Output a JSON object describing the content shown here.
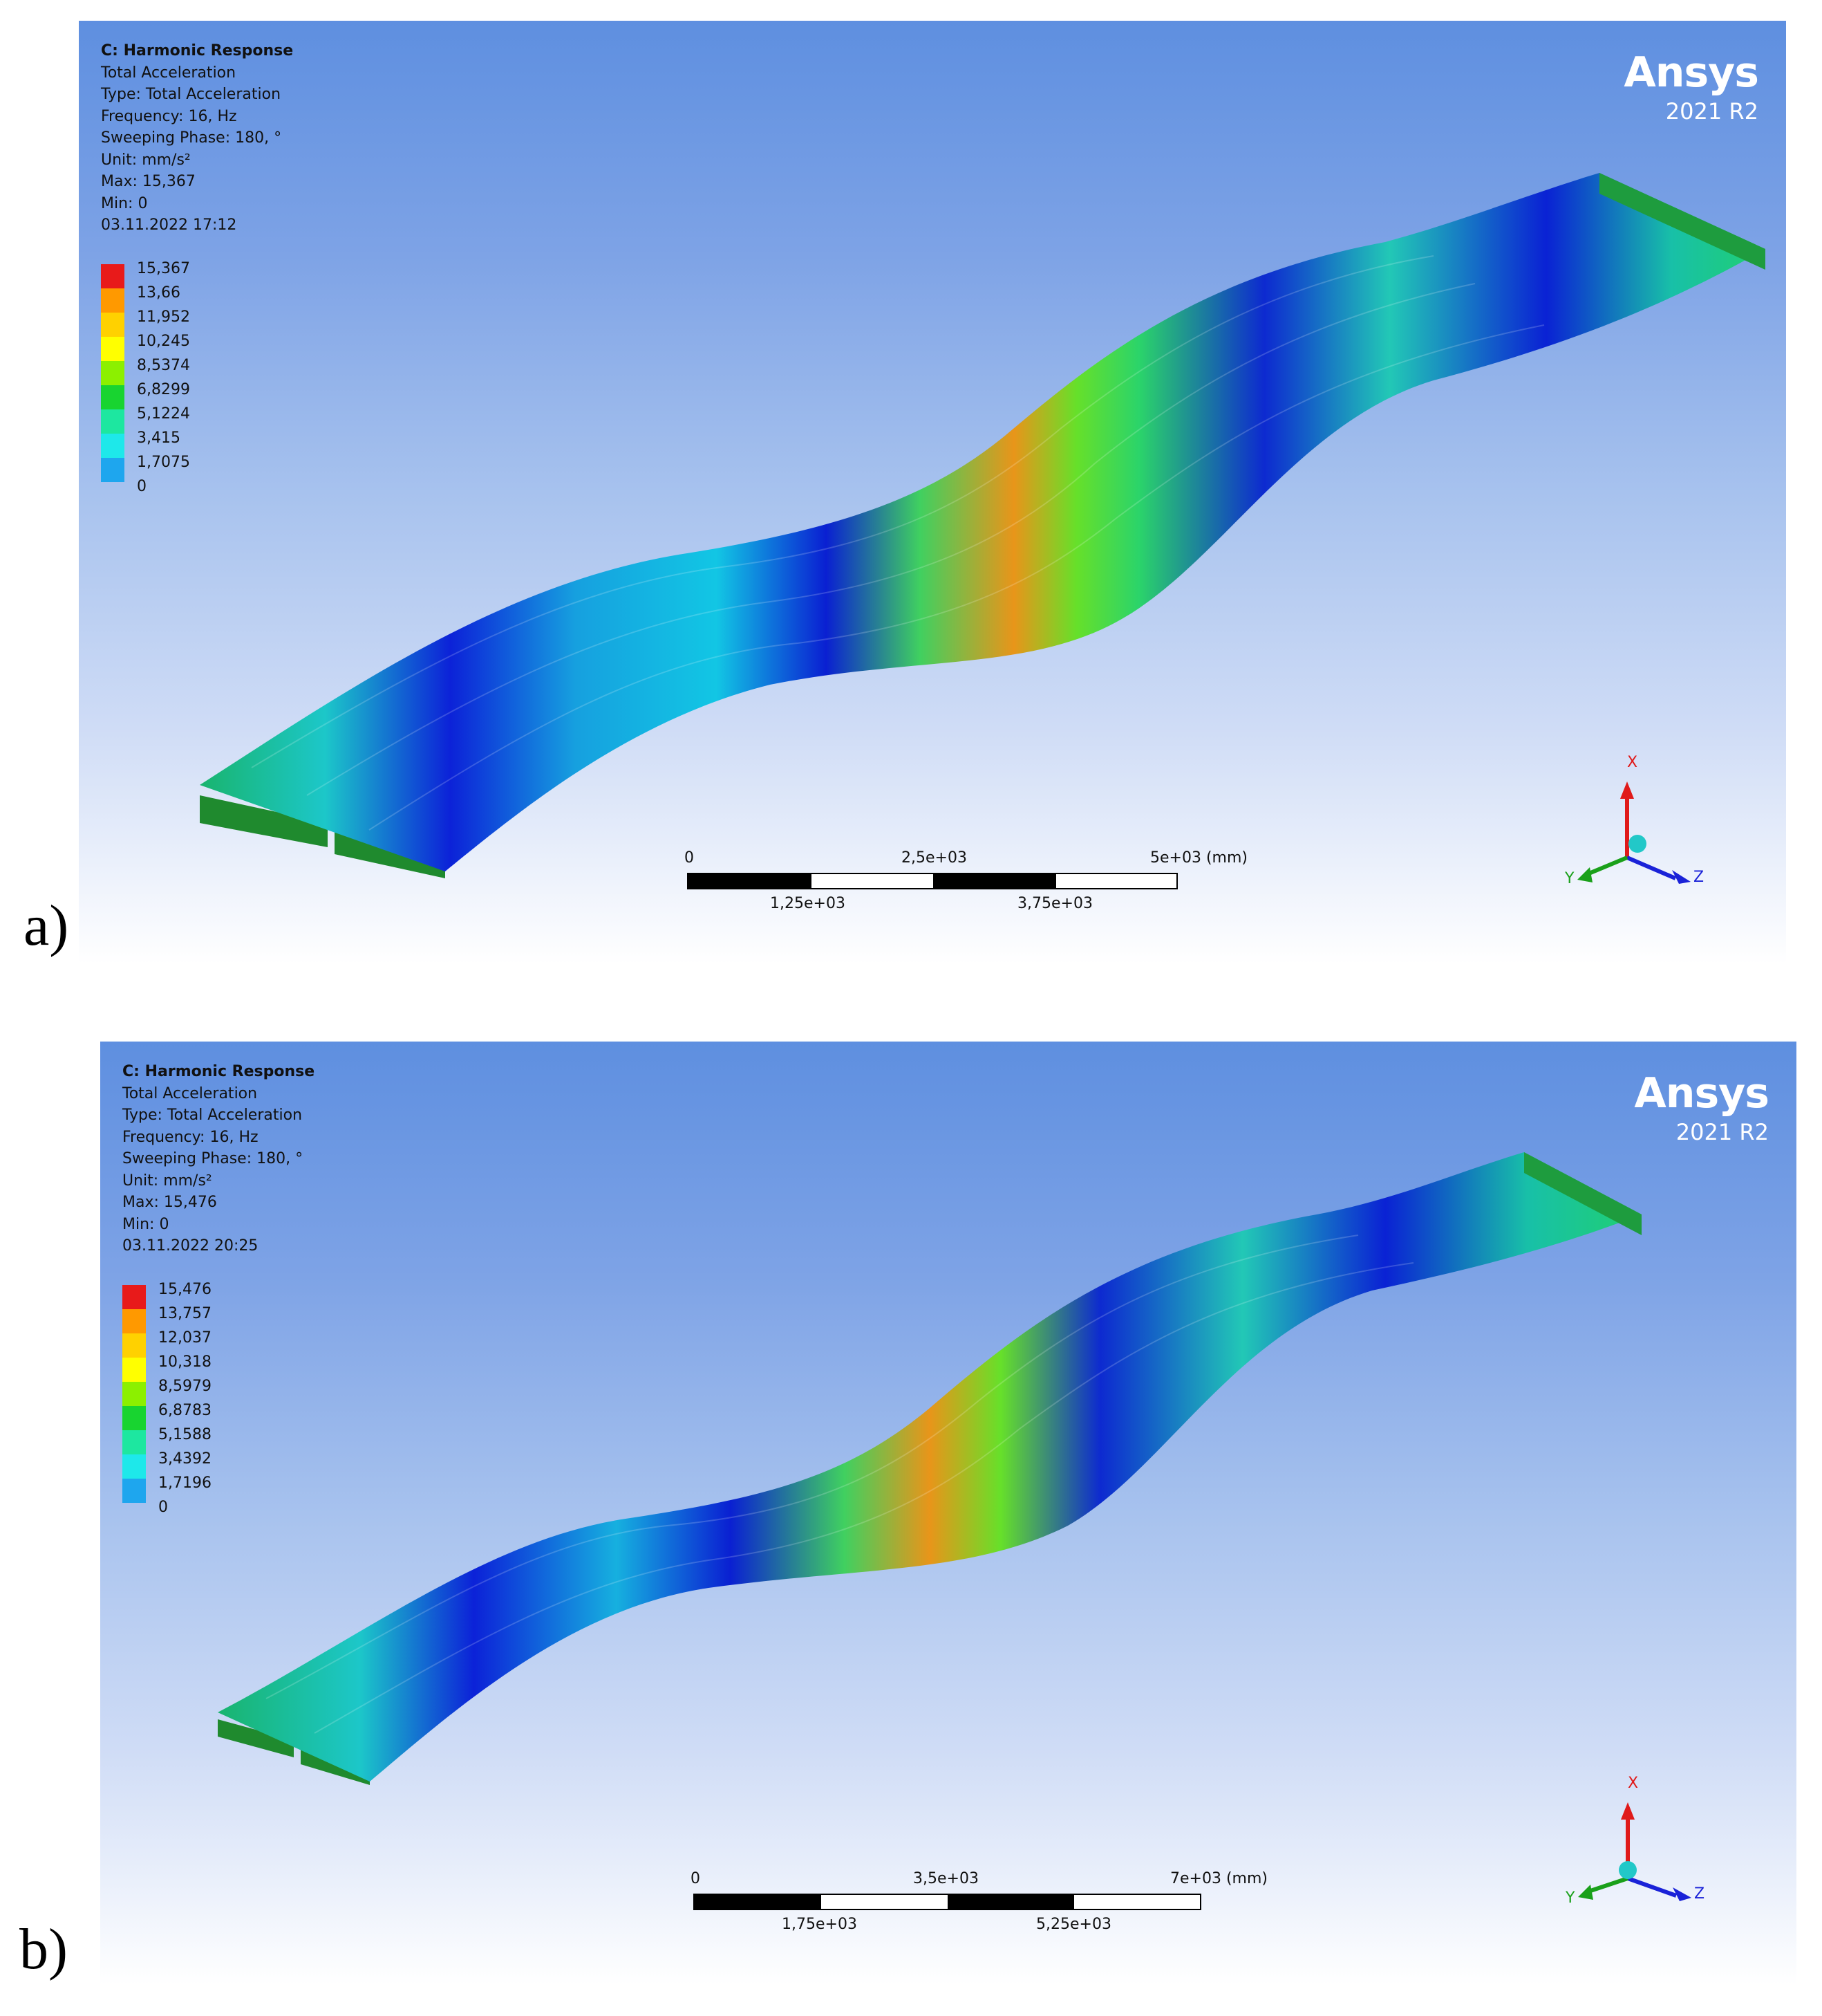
{
  "panels": [
    {
      "label": "a)",
      "info": {
        "title": "C: Harmonic Response",
        "result": "Total Acceleration",
        "type": "Type: Total Acceleration",
        "frequency": "Frequency: 16, Hz",
        "phase": "Sweeping Phase: 180, °",
        "unit": "Unit: mm/s²",
        "max": "Max: 15,367",
        "min": "Min: 0",
        "timestamp": "03.11.2022 17:12"
      },
      "legend": [
        "15,367",
        "13,66",
        "11,952",
        "10,245",
        "8,5374",
        "6,8299",
        "5,1224",
        "3,415",
        "1,7075",
        "0"
      ],
      "scale": {
        "top": [
          "0",
          "2,5e+03",
          "5e+03 (mm)"
        ],
        "bottom": [
          "1,25e+03",
          "3,75e+03"
        ]
      }
    },
    {
      "label": "b)",
      "info": {
        "title": "C: Harmonic Response",
        "result": "Total Acceleration",
        "type": "Type: Total Acceleration",
        "frequency": "Frequency: 16, Hz",
        "phase": "Sweeping Phase: 180, °",
        "unit": "Unit: mm/s²",
        "max": "Max: 15,476",
        "min": "Min: 0",
        "timestamp": "03.11.2022 20:25"
      },
      "legend": [
        "15,476",
        "13,757",
        "12,037",
        "10,318",
        "8,5979",
        "6,8783",
        "5,1588",
        "3,4392",
        "1,7196",
        "0"
      ],
      "scale": {
        "top": [
          "0",
          "3,5e+03",
          "7e+03 (mm)"
        ],
        "bottom": [
          "1,75e+03",
          "5,25e+03"
        ]
      }
    }
  ],
  "brand": {
    "name": "Ansys",
    "version": "2021 R2"
  },
  "triad": {
    "x": "X",
    "y": "Y",
    "z": "Z"
  },
  "legend_colors": [
    "#e81a1a",
    "#ff9900",
    "#ffd100",
    "#ffff00",
    "#8cf000",
    "#18d430",
    "#1de7a0",
    "#1ee8ea",
    "#1ea6ee",
    "#0c1ee6"
  ]
}
